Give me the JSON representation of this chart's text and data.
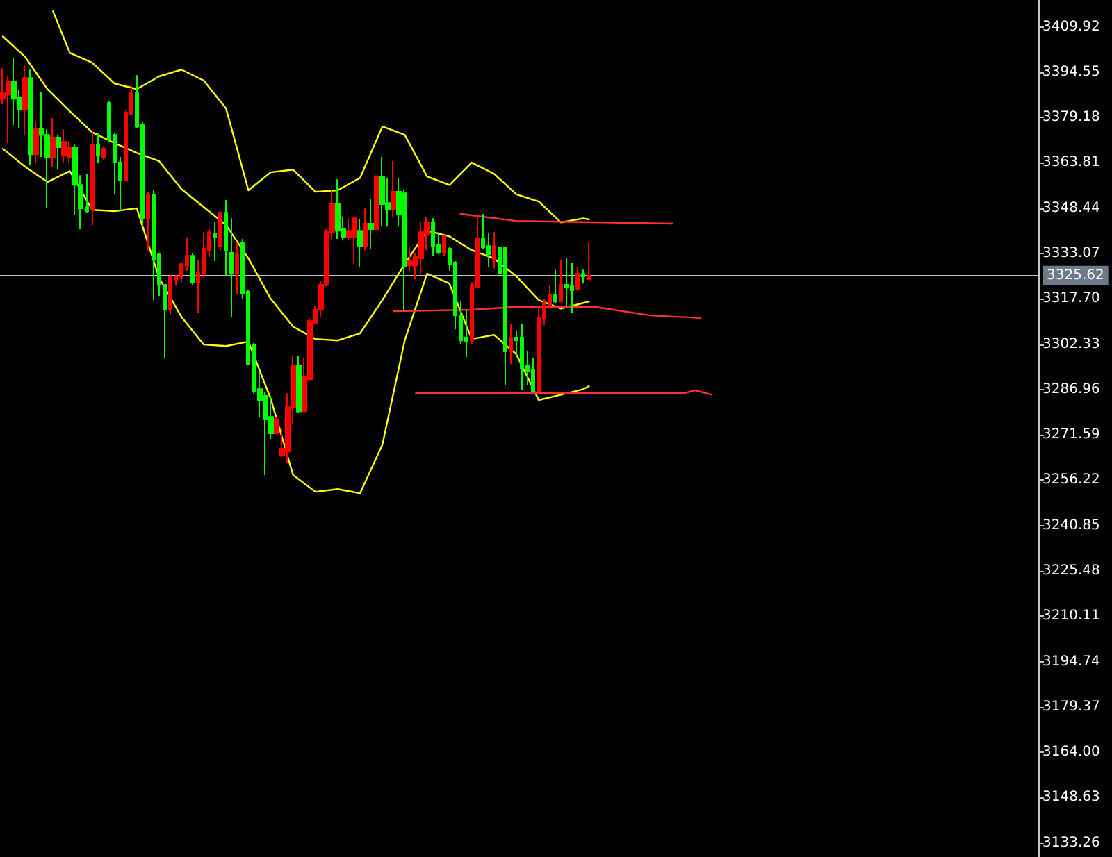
{
  "chart_data": {
    "type": "candlestick",
    "categories": [
      null,
      null,
      null,
      null,
      null,
      null,
      null,
      null,
      null,
      null,
      null,
      null,
      null,
      null,
      null,
      null,
      null,
      null,
      null,
      null,
      null,
      null,
      null,
      null,
      null,
      null,
      null,
      null,
      null,
      null,
      null,
      null,
      null,
      null,
      null,
      null,
      null,
      null,
      null,
      null,
      null,
      null,
      null,
      null,
      null,
      null,
      null,
      null,
      null,
      null,
      null,
      null,
      null,
      null,
      null,
      null,
      null,
      null,
      null,
      null,
      null,
      null,
      null,
      null,
      null,
      null,
      null,
      null,
      null,
      null,
      null,
      null,
      null,
      null,
      null,
      null,
      null,
      null,
      null,
      null,
      null,
      null,
      null,
      null,
      null,
      null,
      null,
      null,
      null,
      null,
      null,
      null,
      null,
      null,
      null,
      null,
      null,
      null,
      null,
      null,
      null,
      null,
      null,
      null,
      null,
      null,
      null,
      null,
      null,
      null,
      null,
      null,
      null,
      null,
      null,
      null,
      null,
      null,
      null,
      null,
      null,
      null,
      null,
      null,
      null,
      null,
      null,
      null,
      null,
      null,
      null,
      null,
      null,
      null,
      null,
      null,
      null,
      null,
      null,
      null,
      null,
      null,
      null,
      null,
      null,
      null,
      null,
      null,
      null,
      null,
      null,
      null,
      null,
      null,
      null,
      null,
      null,
      null,
      null,
      null,
      null,
      null,
      null,
      null,
      null,
      null,
      null,
      null,
      null,
      null,
      null,
      null,
      null,
      null,
      null,
      null,
      null,
      null,
      null,
      null,
      null,
      null,
      null,
      null,
      null,
      null
    ],
    "ylim": [
      3128.5,
      3419
    ],
    "yticks": [
      3409.92,
      3394.55,
      3379.18,
      3363.81,
      3348.44,
      3333.07,
      {
        "value": 3317.7,
        "label": "3317.70"
      },
      3302.33,
      3286.96,
      3271.59,
      3256.22,
      3240.85,
      3225.48,
      3210.11,
      3194.74,
      3179.37,
      {
        "value": 3164,
        "label": "3164.00"
      },
      3148.63,
      3133.26
    ],
    "tick_labels": "y",
    "grid": false,
    "ref_lines": [
      {
        "axis": "y",
        "value": 3325.62,
        "label": "3325.62",
        "color": "#c0c0c0"
      }
    ],
    "ohlc": [
      [
        3385.5,
        3395.9,
        3383.6,
        3387.4
      ],
      [
        3386.9,
        3393.1,
        3370.5,
        3391.2
      ],
      [
        3391.2,
        3399.2,
        3376.6,
        3385.5
      ],
      [
        3386.0,
        3388.4,
        3375.7,
        3381.8
      ],
      [
        3381.8,
        3396.8,
        3373.3,
        3392.6
      ],
      [
        3392.6,
        3395.4,
        3362.9,
        3366.7
      ],
      [
        3366.7,
        3378.0,
        3363.9,
        3375.2
      ],
      [
        3375.2,
        3387.9,
        3365.8,
        3373.3
      ],
      [
        3373.3,
        3375.2,
        3348.4,
        3365.8
      ],
      [
        3365.8,
        3379.0,
        3362.5,
        3372.4
      ],
      [
        3372.4,
        3373.3,
        3361.5,
        3369.1
      ],
      [
        3366.2,
        3375.2,
        3363.9,
        3370.9
      ],
      [
        3365.8,
        3370.9,
        3363.9,
        3369.1
      ],
      [
        3369.1,
        3370.0,
        3346.0,
        3356.3
      ],
      [
        3356.3,
        3359.6,
        3341.3,
        3348.4
      ],
      [
        3348.8,
        3360.1,
        3346.9,
        3347.4
      ],
      [
        3347.9,
        3374.7,
        3342.7,
        3370.0
      ],
      [
        3370.0,
        3373.8,
        3363.9,
        3366.2
      ],
      [
        3365.8,
        3369.5,
        3364.8,
        3368.6
      ],
      [
        3384.1,
        3384.6,
        3370.9,
        3371.9
      ],
      [
        3373.3,
        3373.8,
        3353.1,
        3363.9
      ],
      [
        3363.9,
        3365.8,
        3347.4,
        3357.8
      ],
      [
        3357.8,
        3381.8,
        3357.8,
        3380.8
      ],
      [
        3380.4,
        3389.8,
        3380.4,
        3387.4
      ],
      [
        3387.4,
        3393.5,
        3375.7,
        3376.1
      ],
      [
        3376.6,
        3377.5,
        3342.2,
        3345.0
      ],
      [
        3345.0,
        3354.0,
        3334.2,
        3353.1
      ],
      [
        3353.1,
        3354.5,
        3317.3,
        3330.9
      ],
      [
        3332.8,
        3333.3,
        3318.7,
        3322.5
      ],
      [
        3322.5,
        3322.5,
        3297.5,
        3314.0
      ],
      [
        3314.0,
        3326.2,
        3312.1,
        3325.3
      ],
      [
        3324.3,
        3325.7,
        3322.5,
        3325.3
      ],
      [
        3324.8,
        3330.0,
        3323.4,
        3329.5
      ],
      [
        3329.0,
        3338.5,
        3327.2,
        3332.3
      ],
      [
        3332.3,
        3333.3,
        3322.5,
        3323.4
      ],
      [
        3323.4,
        3330.9,
        3313.0,
        3326.7
      ],
      [
        3326.2,
        3340.3,
        3324.8,
        3334.7
      ],
      [
        3334.2,
        3341.3,
        3331.9,
        3340.3
      ],
      [
        3339.9,
        3343.6,
        3330.5,
        3338.5
      ],
      [
        3335.6,
        3347.4,
        3334.2,
        3346.9
      ],
      [
        3346.9,
        3351.2,
        3325.7,
        3334.2
      ],
      [
        3333.3,
        3345.0,
        3311.6,
        3326.2
      ],
      [
        3326.2,
        3336.6,
        3319.2,
        3332.8
      ],
      [
        3336.6,
        3338.0,
        3317.7,
        3319.6
      ],
      [
        3320.1,
        3320.6,
        3295.6,
        3295.6
      ],
      [
        3302.2,
        3302.7,
        3285.7,
        3286.2
      ],
      [
        3287.1,
        3292.8,
        3277.7,
        3283.4
      ],
      [
        3284.8,
        3286.2,
        3258.0,
        3276.8
      ],
      [
        3277.7,
        3284.8,
        3270.2,
        3272.1
      ],
      [
        3272.1,
        3277.7,
        3272.1,
        3276.8
      ],
      [
        3264.5,
        3273.9,
        3264.5,
        3266.9
      ],
      [
        3265.9,
        3285.7,
        3262.2,
        3281.0
      ],
      [
        3281.0,
        3298.4,
        3275.3,
        3295.2
      ],
      [
        3295.2,
        3298.4,
        3279.1,
        3279.6
      ],
      [
        3279.6,
        3297.5,
        3279.6,
        3291.4
      ],
      [
        3290.4,
        3310.7,
        3290.4,
        3310.2
      ],
      [
        3309.3,
        3315.4,
        3309.3,
        3314.0
      ],
      [
        3314.0,
        3323.9,
        3311.6,
        3322.5
      ],
      [
        3322.5,
        3341.3,
        3322.0,
        3340.3
      ],
      [
        3340.3,
        3354.5,
        3337.5,
        3349.8
      ],
      [
        3349.8,
        3358.2,
        3338.0,
        3340.8
      ],
      [
        3341.3,
        3345.5,
        3337.5,
        3338.5
      ],
      [
        3338.5,
        3345.0,
        3337.5,
        3340.8
      ],
      [
        3338.5,
        3345.0,
        3329.5,
        3345.0
      ],
      [
        3340.8,
        3344.6,
        3328.6,
        3335.6
      ],
      [
        3335.6,
        3348.4,
        3334.2,
        3343.2
      ],
      [
        3343.2,
        3351.6,
        3334.7,
        3341.3
      ],
      [
        3341.3,
        3359.6,
        3341.3,
        3359.2
      ],
      [
        3359.2,
        3365.8,
        3342.2,
        3349.8
      ],
      [
        3350.2,
        3358.7,
        3342.2,
        3347.9
      ],
      [
        3347.9,
        3364.4,
        3345.5,
        3354.0
      ],
      [
        3354.0,
        3358.7,
        3342.2,
        3346.5
      ],
      [
        3353.5,
        3354.5,
        3314.0,
        3328.6
      ],
      [
        3329.0,
        3335.2,
        3327.2,
        3330.5
      ],
      [
        3329.0,
        3333.3,
        3324.3,
        3331.9
      ],
      [
        3331.4,
        3343.6,
        3326.2,
        3340.3
      ],
      [
        3339.4,
        3345.5,
        3334.2,
        3343.6
      ],
      [
        3343.6,
        3345.0,
        3332.3,
        3335.6
      ],
      [
        3336.1,
        3340.3,
        3332.8,
        3333.3
      ],
      [
        3333.3,
        3338.9,
        3332.3,
        3338.9
      ],
      [
        3334.7,
        3335.2,
        3327.2,
        3329.5
      ],
      [
        3330.0,
        3330.5,
        3307.4,
        3312.1
      ],
      [
        3312.1,
        3316.8,
        3302.2,
        3303.6
      ],
      [
        3304.6,
        3314.0,
        3298.0,
        3303.2
      ],
      [
        3303.6,
        3323.4,
        3302.2,
        3322.0
      ],
      [
        3321.5,
        3346.0,
        3321.5,
        3338.0
      ],
      [
        3338.0,
        3346.5,
        3334.7,
        3335.2
      ],
      [
        3335.6,
        3339.9,
        3328.6,
        3332.8
      ],
      [
        3330.9,
        3340.3,
        3328.1,
        3335.6
      ],
      [
        3335.2,
        3335.2,
        3326.2,
        3326.2
      ],
      [
        3335.2,
        3335.2,
        3288.6,
        3299.9
      ],
      [
        3299.9,
        3309.3,
        3295.6,
        3304.6
      ],
      [
        3304.6,
        3306.9,
        3298.4,
        3303.6
      ],
      [
        3304.6,
        3309.3,
        3286.7,
        3294.2
      ],
      [
        3295.2,
        3299.9,
        3288.6,
        3293.3
      ],
      [
        3293.7,
        3297.5,
        3286.2,
        3286.2
      ],
      [
        3286.2,
        3315.4,
        3286.2,
        3311.2
      ],
      [
        3311.2,
        3317.7,
        3308.8,
        3316.3
      ],
      [
        3315.4,
        3322.5,
        3314.4,
        3319.2
      ],
      [
        3319.2,
        3327.6,
        3316.3,
        3316.8
      ],
      [
        3316.8,
        3330.9,
        3316.8,
        3322.5
      ],
      [
        3322.5,
        3331.4,
        3315.4,
        3321.5
      ],
      [
        3322.0,
        3330.0,
        3313.0,
        3320.6
      ],
      [
        3321.0,
        3328.6,
        3321.0,
        3326.2
      ],
      [
        3326.2,
        3327.6,
        3322.9,
        3325.3
      ],
      [
        3324.3,
        3337.0,
        3324.3,
        3325.62
      ],
      null,
      null,
      null,
      null,
      null,
      null,
      null,
      null,
      null,
      null,
      null,
      null,
      null,
      null,
      null,
      null,
      null,
      null,
      null,
      null,
      null,
      null,
      null,
      null,
      null,
      null,
      null,
      null,
      null,
      null,
      null,
      null,
      null,
      null,
      null,
      null,
      null,
      null,
      null,
      null,
      null,
      null,
      null,
      null,
      null,
      null,
      null,
      null,
      null,
      null,
      null,
      null,
      null,
      null,
      null,
      null,
      null,
      null,
      null,
      null,
      null,
      null,
      null,
      null,
      null,
      null,
      null,
      null,
      null,
      null,
      null,
      null,
      null,
      null,
      null,
      null,
      null,
      null,
      null,
      null
    ],
    "colors": [
      "#ff0000",
      "#ff0000",
      "#00ff00",
      "#00ff00",
      "#ff0000",
      "#00ff00",
      "#ff0000",
      "#00ff00",
      "#00ff00",
      "#ff0000",
      "#00ff00",
      "#ff0000",
      "#ff0000",
      "#00ff00",
      "#00ff00",
      "#00ff00",
      "#ff0000",
      "#00ff00",
      "#ff0000",
      "#00ff00",
      "#00ff00",
      "#00ff00",
      "#ff0000",
      "#ff0000",
      "#00ff00",
      "#00ff00",
      "#ff0000",
      "#00ff00",
      "#00ff00",
      "#00ff00",
      "#ff0000",
      "#ff0000",
      "#ff0000",
      "#ff0000",
      "#00ff00",
      "#ff0000",
      "#ff0000",
      "#ff0000",
      "#00ff00",
      "#ff0000",
      "#00ff00",
      "#00ff00",
      "#ff0000",
      "#00ff00",
      "#00ff00",
      "#00ff00",
      "#00ff00",
      "#00ff00",
      "#00ff00",
      "#ff0000",
      "#ff0000",
      "#ff0000",
      "#ff0000",
      "#00ff00",
      "#ff0000",
      "#ff0000",
      "#ff0000",
      "#ff0000",
      "#ff0000",
      "#ff0000",
      "#00ff00",
      "#00ff00",
      "#ff0000",
      "#ff0000",
      "#00ff00",
      "#ff0000",
      "#00ff00",
      "#ff0000",
      "#00ff00",
      "#00ff00",
      "#ff0000",
      "#00ff00",
      "#00ff00",
      "#ff0000",
      "#ff0000",
      "#ff0000",
      "#ff0000",
      "#00ff00",
      "#00ff00",
      "#ff0000",
      "#00ff00",
      "#00ff00",
      "#00ff00",
      "#00ff00",
      "#ff0000",
      "#ff0000",
      "#00ff00",
      "#00ff00",
      "#ff0000",
      "#00ff00",
      "#00ff00",
      "#ff0000",
      "#00ff00",
      "#00ff00",
      "#00ff00",
      "#00ff00",
      "#ff0000",
      "#ff0000",
      "#ff0000",
      "#00ff00",
      "#ff0000",
      "#00ff00",
      "#00ff00",
      "#ff0000",
      "#00ff00",
      "#ff0000",
      null,
      null,
      null,
      null,
      null,
      null,
      null,
      null,
      null,
      null,
      null,
      null,
      null,
      null,
      null,
      null,
      null,
      null,
      null,
      null,
      null,
      null,
      null,
      null,
      null,
      null,
      null,
      null,
      null,
      null,
      null,
      null,
      null,
      null,
      null,
      null,
      null,
      null,
      null,
      null,
      null,
      null,
      null,
      null,
      null,
      null,
      null,
      null,
      null,
      null,
      null,
      null,
      null,
      null,
      null,
      null,
      null,
      null,
      null,
      null,
      null,
      null,
      null,
      null,
      null,
      null,
      null,
      null,
      null,
      null,
      null,
      null,
      null,
      null,
      null,
      null,
      null,
      null,
      null,
      null
    ],
    "series": [
      {
        "type": "line",
        "color": "#ffff00",
        "values": [
          null,
          null,
          null,
          null,
          null,
          null,
          null,
          null,
          null,
          3415.2,
          null,
          null,
          3401.1,
          null,
          null,
          null,
          3397.8,
          null,
          null,
          null,
          3390.7,
          null,
          null,
          null,
          3388.8,
          null,
          null,
          null,
          3393.1,
          null,
          null,
          null,
          3395.4,
          null,
          null,
          null,
          3391.7,
          null,
          null,
          null,
          3382.2,
          null,
          null,
          null,
          3354.5,
          null,
          null,
          null,
          3360.6,
          null,
          null,
          null,
          3361.5,
          null,
          null,
          null,
          3354.0,
          null,
          null,
          null,
          3354.5,
          null,
          null,
          null,
          3358.7,
          null,
          null,
          null,
          3376.1,
          null,
          null,
          null,
          3373.3,
          null,
          null,
          null,
          3359.2,
          null,
          null,
          null,
          3356.3,
          null,
          null,
          null,
          3363.9,
          null,
          null,
          null,
          3360.1,
          null,
          null,
          null,
          3353.1,
          null,
          null,
          null,
          3350.7,
          null,
          null,
          null,
          3343.6,
          null,
          null,
          null,
          3345.0,
          3344.6,
          null,
          null,
          null,
          null,
          null,
          null,
          null,
          null,
          null,
          null,
          null,
          null,
          null,
          null,
          null,
          null,
          null,
          null,
          null,
          null,
          null,
          null,
          null,
          null,
          null,
          null,
          null,
          null,
          null,
          null,
          null,
          null,
          null,
          null,
          null,
          null,
          null,
          null,
          null,
          null,
          null,
          null,
          null,
          null,
          null,
          null,
          null,
          null,
          null,
          null,
          null,
          null,
          null,
          null,
          null,
          null,
          null,
          null,
          null,
          null,
          null,
          null,
          null,
          null,
          null,
          null,
          null,
          null,
          null,
          null,
          null,
          null,
          null,
          null,
          null,
          null,
          null,
          null,
          null,
          null
        ]
      },
      {
        "type": "line",
        "color": "#ffff00",
        "values": [
          3406.7,
          null,
          null,
          null,
          3399.7,
          null,
          null,
          null,
          3388.8,
          null,
          null,
          null,
          3381.3,
          null,
          null,
          null,
          3374.2,
          null,
          null,
          null,
          3370.5,
          null,
          null,
          null,
          3367.2,
          null,
          null,
          null,
          3364.4,
          null,
          null,
          null,
          3354.9,
          null,
          null,
          null,
          3348.8,
          null,
          null,
          null,
          3342.7,
          null,
          null,
          null,
          3331.4,
          null,
          null,
          null,
          3317.7,
          null,
          null,
          null,
          3308.3,
          null,
          null,
          null,
          3304.1,
          null,
          null,
          null,
          3303.6,
          null,
          null,
          null,
          3306.0,
          null,
          null,
          null,
          3317.3,
          null,
          null,
          null,
          3329.5,
          null,
          null,
          null,
          3340.8,
          null,
          null,
          null,
          3338.9,
          null,
          null,
          null,
          3334.2,
          null,
          null,
          null,
          3331.4,
          null,
          null,
          null,
          3325.3,
          null,
          null,
          null,
          3317.3,
          null,
          null,
          null,
          3314.4,
          null,
          null,
          null,
          3316.3,
          3316.8,
          null,
          null,
          null,
          null,
          null,
          null,
          null,
          null,
          null,
          null,
          null,
          null,
          null,
          null,
          null,
          null,
          null,
          null,
          null,
          null,
          null,
          null,
          null,
          null,
          null,
          null,
          null,
          null,
          null,
          null,
          null,
          null,
          null,
          null,
          null,
          null,
          null,
          null,
          null,
          null,
          null,
          null,
          null,
          null,
          null,
          null,
          null,
          null,
          null,
          null,
          null,
          null,
          null,
          null,
          null,
          null,
          null,
          null,
          null,
          null,
          null,
          null,
          null,
          null,
          null,
          null,
          null,
          null,
          null,
          null,
          null,
          null,
          null,
          null,
          null,
          null,
          null,
          null,
          null,
          null
        ]
      },
      {
        "type": "line",
        "color": "#ffff00",
        "values": [
          3368.6,
          null,
          null,
          null,
          3362.5,
          null,
          null,
          null,
          3357.3,
          null,
          null,
          null,
          3361.0,
          null,
          null,
          null,
          3347.9,
          null,
          null,
          null,
          3347.4,
          null,
          null,
          null,
          3348.4,
          null,
          null,
          null,
          3324.8,
          null,
          null,
          null,
          3311.6,
          null,
          null,
          null,
          3302.2,
          null,
          null,
          null,
          3301.7,
          null,
          null,
          null,
          3303.2,
          null,
          null,
          null,
          3283.8,
          null,
          null,
          null,
          3258.0,
          null,
          null,
          null,
          3252.3,
          null,
          null,
          null,
          3253.2,
          null,
          null,
          null,
          3251.8,
          null,
          null,
          null,
          3268.3,
          null,
          null,
          null,
          3303.6,
          null,
          null,
          null,
          3326.2,
          null,
          null,
          null,
          3322.9,
          null,
          null,
          null,
          3304.1,
          null,
          null,
          null,
          3305.5,
          null,
          null,
          null,
          3298.9,
          null,
          null,
          null,
          3283.4,
          null,
          null,
          null,
          3285.2,
          null,
          null,
          null,
          3287.1,
          3288.1,
          null,
          null,
          null,
          null,
          null,
          null,
          null,
          null,
          null,
          null,
          null,
          null,
          null,
          null,
          null,
          null,
          null,
          null,
          null,
          null,
          null,
          null,
          null,
          null,
          null,
          null,
          null,
          null,
          null,
          null,
          null,
          null,
          null,
          null,
          null,
          null,
          null,
          null,
          null,
          null,
          null,
          null,
          null,
          null,
          null,
          null,
          null,
          null,
          null,
          null,
          null,
          null,
          null,
          null,
          null,
          null,
          null,
          null,
          null,
          null,
          null,
          null,
          null,
          null,
          null,
          null,
          null,
          null,
          null,
          null,
          null,
          null,
          null,
          null,
          null,
          null,
          null,
          null,
          null,
          null
        ]
      },
      {
        "type": "line",
        "color": "#ff3030",
        "values": [
          null,
          null,
          null,
          null,
          null,
          null,
          null,
          null,
          null,
          null,
          null,
          null,
          null,
          null,
          null,
          null,
          null,
          null,
          null,
          null,
          null,
          null,
          null,
          null,
          null,
          null,
          null,
          null,
          null,
          null,
          null,
          null,
          null,
          null,
          null,
          null,
          null,
          null,
          null,
          null,
          null,
          null,
          null,
          null,
          null,
          null,
          null,
          null,
          null,
          null,
          null,
          null,
          null,
          null,
          null,
          null,
          null,
          null,
          null,
          null,
          null,
          null,
          null,
          null,
          null,
          null,
          null,
          null,
          null,
          null,
          null,
          null,
          null,
          null,
          null,
          null,
          null,
          null,
          null,
          null,
          null,
          null,
          3346.5,
          null,
          null,
          null,
          null,
          null,
          null,
          null,
          null,
          null,
          3344.1,
          null,
          null,
          null,
          null,
          null,
          null,
          null,
          null,
          null,
          null,
          null,
          null,
          null,
          null,
          null,
          null,
          null,
          null,
          null,
          null,
          null,
          null,
          null,
          null,
          null,
          null,
          null,
          3343.2,
          null,
          null,
          null,
          null,
          null,
          null,
          null,
          null,
          null,
          null,
          null,
          null,
          null,
          null,
          null,
          null,
          null,
          null,
          null,
          null,
          null,
          null,
          null,
          null,
          null,
          null,
          null,
          null,
          null,
          null,
          null,
          null,
          null,
          null,
          null,
          null,
          null,
          null,
          null,
          null,
          null,
          null,
          null,
          null,
          null,
          null,
          null,
          null,
          null,
          null,
          null,
          null,
          null,
          null,
          null,
          null,
          null,
          null,
          null,
          null,
          null,
          null,
          null,
          null,
          null
        ]
      },
      {
        "type": "line",
        "color": "#ff3030",
        "values": [
          null,
          null,
          null,
          null,
          null,
          null,
          null,
          null,
          null,
          null,
          null,
          null,
          null,
          null,
          null,
          null,
          null,
          null,
          null,
          null,
          null,
          null,
          null,
          null,
          null,
          null,
          null,
          null,
          null,
          null,
          null,
          null,
          null,
          null,
          null,
          null,
          null,
          null,
          null,
          null,
          null,
          null,
          null,
          null,
          null,
          null,
          null,
          null,
          null,
          null,
          null,
          null,
          null,
          null,
          null,
          null,
          null,
          null,
          null,
          null,
          null,
          null,
          null,
          null,
          null,
          null,
          null,
          null,
          null,
          null,
          3313.5,
          null,
          null,
          null,
          null,
          null,
          null,
          null,
          null,
          null,
          null,
          null,
          null,
          null,
          3314.0,
          null,
          null,
          null,
          null,
          null,
          null,
          null,
          3315.0,
          null,
          null,
          null,
          null,
          null,
          null,
          null,
          null,
          null,
          null,
          null,
          null,
          null,
          3315.0,
          null,
          null,
          null,
          null,
          null,
          null,
          null,
          null,
          null,
          3312.1,
          null,
          null,
          null,
          null,
          null,
          null,
          null,
          null,
          3311.2,
          null,
          null,
          null,
          null,
          null,
          null,
          null,
          null,
          null,
          null,
          null,
          null,
          null,
          null,
          null,
          null,
          null,
          null,
          null,
          null,
          null,
          null,
          null,
          null,
          null,
          null,
          null,
          null,
          null,
          null,
          null,
          null,
          null,
          null,
          null,
          null,
          null,
          null,
          null,
          null,
          null,
          null,
          null,
          null,
          null,
          null,
          null,
          null,
          null,
          null,
          null,
          null,
          null,
          null,
          null,
          null,
          null,
          null,
          null,
          null
        ]
      },
      {
        "type": "line",
        "color": "#ff3030",
        "values": [
          null,
          null,
          null,
          null,
          null,
          null,
          null,
          null,
          null,
          null,
          null,
          null,
          null,
          null,
          null,
          null,
          null,
          null,
          null,
          null,
          null,
          null,
          null,
          null,
          null,
          null,
          null,
          null,
          null,
          null,
          null,
          null,
          null,
          null,
          null,
          null,
          null,
          null,
          null,
          null,
          null,
          null,
          null,
          null,
          null,
          null,
          null,
          null,
          null,
          null,
          null,
          null,
          null,
          null,
          null,
          null,
          null,
          null,
          null,
          null,
          null,
          null,
          null,
          null,
          null,
          null,
          null,
          null,
          null,
          null,
          null,
          null,
          null,
          null,
          3285.7,
          null,
          null,
          null,
          null,
          null,
          null,
          null,
          null,
          null,
          null,
          null,
          null,
          null,
          null,
          null,
          null,
          null,
          null,
          null,
          null,
          null,
          null,
          null,
          null,
          null,
          null,
          null,
          null,
          null,
          null,
          null,
          null,
          null,
          null,
          null,
          null,
          null,
          null,
          null,
          null,
          null,
          null,
          null,
          null,
          null,
          null,
          null,
          3285.7,
          null,
          3286.7,
          null,
          null,
          3285.2,
          null,
          null,
          null,
          null,
          null,
          null,
          null,
          null,
          null,
          null,
          null,
          null,
          null,
          null,
          null,
          null,
          null,
          null,
          null,
          null,
          null,
          null,
          null,
          null,
          null,
          null,
          null,
          null,
          null,
          null,
          null,
          null,
          null,
          null,
          null,
          null,
          null,
          null,
          null,
          null,
          null,
          null,
          null,
          null,
          null,
          null,
          null,
          null,
          null,
          null,
          null,
          null,
          null,
          null,
          null,
          null,
          null,
          null
        ]
      }
    ]
  }
}
